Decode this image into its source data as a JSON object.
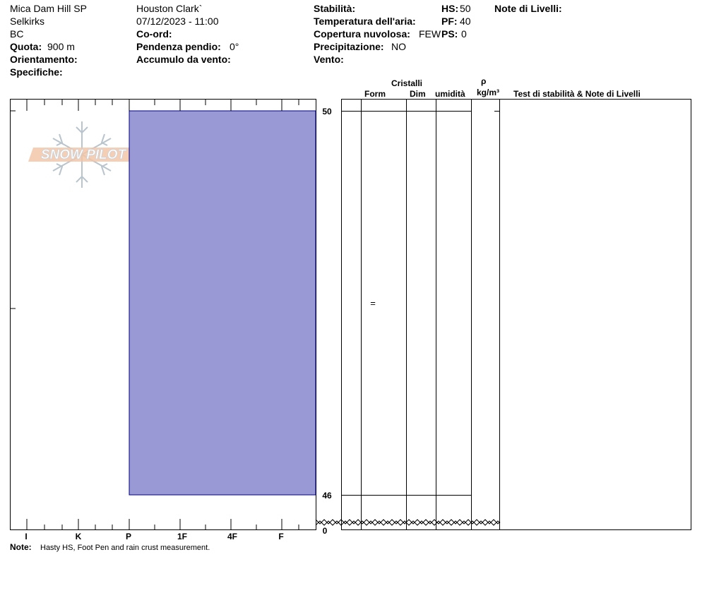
{
  "header": {
    "location": "Mica Dam Hill SP",
    "range": "Selkirks",
    "state": "BC",
    "observer": "Houston Clark`",
    "datetime": "07/12/2023 - 11:00",
    "elevation_label": "Quota:",
    "elevation_value": "900 m",
    "aspect_label": "Orientamento:",
    "specifics_label": "Specifiche:",
    "coords_label": "Co-ord:",
    "slope_label": "Pendenza pendio:",
    "slope_value": "0°",
    "wind_loading_label": "Accumulo da vento:",
    "stability_label": "Stabilità:",
    "air_temp_label": "Temperatura dell'aria:",
    "sky_label": "Copertura nuvolosa:",
    "sky_value": "FEW",
    "precip_label": "Precipitazione:",
    "precip_value": "NO",
    "wind_label": "Vento:",
    "hs_label": "HS:",
    "hs_value": "50",
    "pf_label": "PF:",
    "pf_value": "40",
    "ps_label": "PS:",
    "ps_value": "0",
    "layer_notes_label": "Note di Livelli:"
  },
  "columns": {
    "crystals": "Cristalli",
    "form": "Form",
    "size": "Dim",
    "moisture": "umidità",
    "rho": "ρ",
    "density_unit": "kg/m³",
    "tests": "Test di stabilità & Note di Livelli"
  },
  "logo_text": "SNOW PILOT",
  "hardness_axis": [
    "I",
    "K",
    "P",
    "1F",
    "4F",
    "F"
  ],
  "depth_labels": {
    "top": "50",
    "layer_bottom": "46",
    "ground": "0"
  },
  "layer": {
    "top_cm": 50,
    "bottom_cm": 46,
    "hardness": "F",
    "form_symbol": "=",
    "fill_color": "#9999d6",
    "edge_color": "#000080"
  },
  "note": {
    "label": "Note:",
    "text": "Hasty HS, Foot Pen and rain crust measurement."
  }
}
